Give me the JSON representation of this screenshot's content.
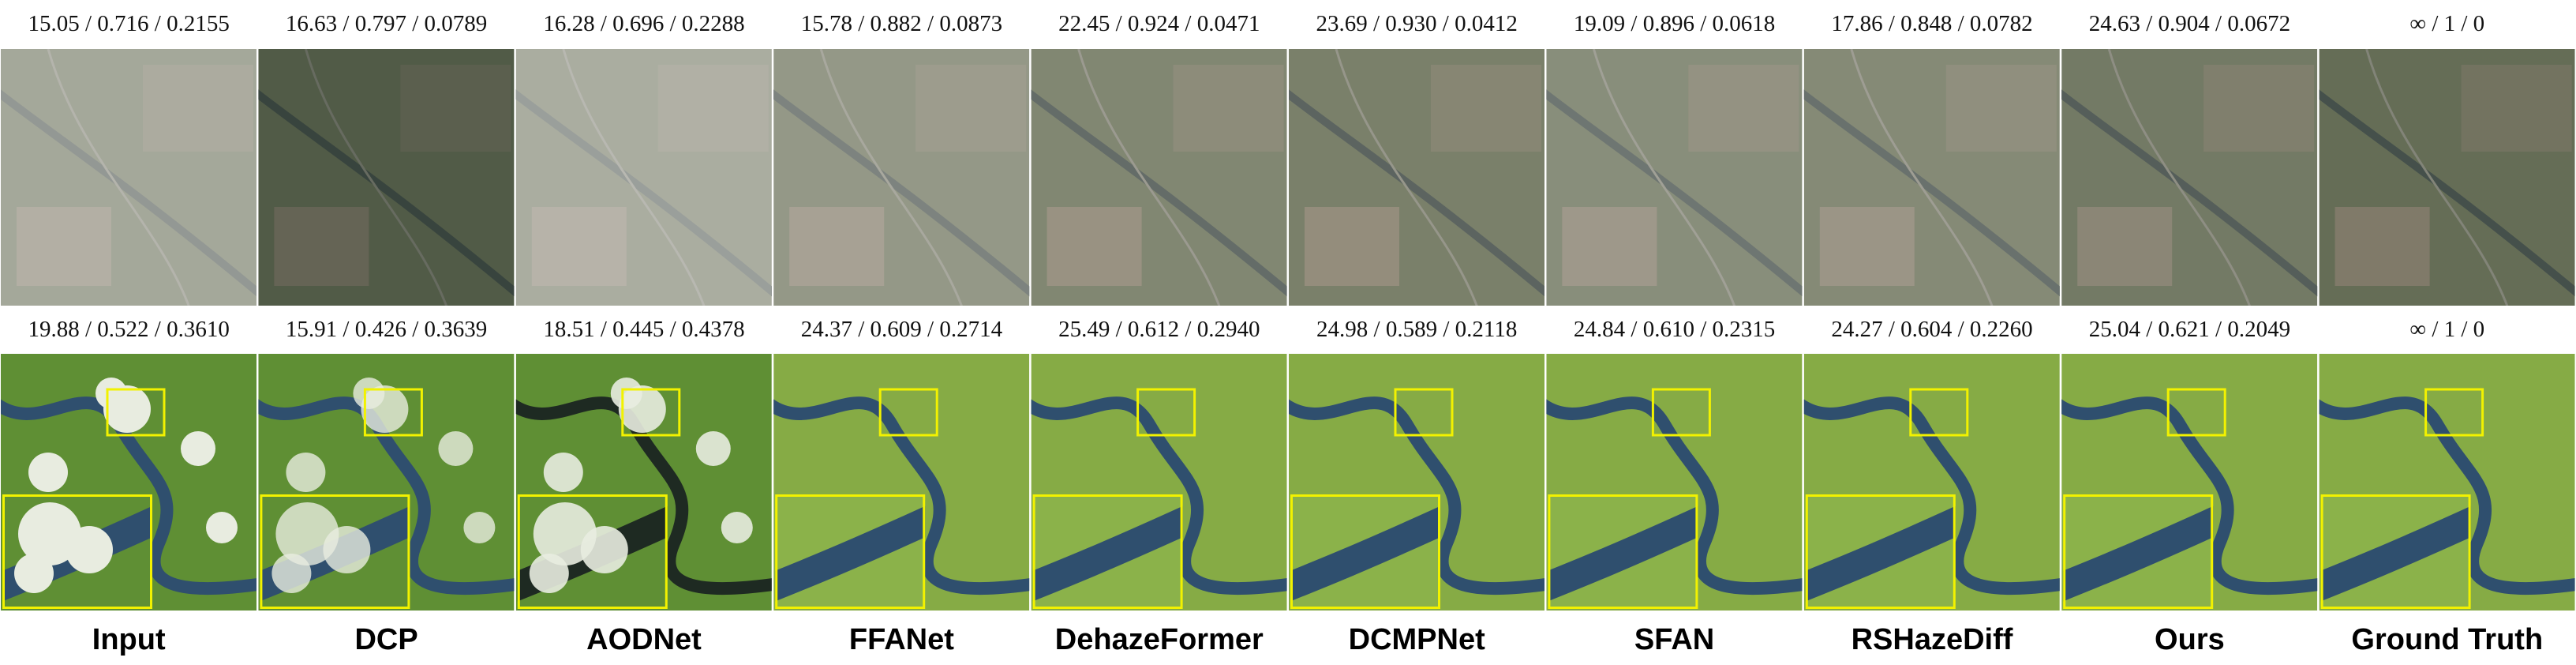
{
  "figure": {
    "methods": [
      "Input",
      "DCP",
      "AODNet",
      "FFANet",
      "DehazeFormer",
      "DCMPNet",
      "SFAN",
      "RSHazeDiff",
      "Ours",
      "Ground Truth"
    ],
    "rows": [
      {
        "metrics": [
          "15.05 / 0.716 / 0.2155",
          "16.63 / 0.797 / 0.0789",
          "16.28 / 0.696 / 0.2288",
          "15.78 / 0.882 / 0.0873",
          "22.45 / 0.924 / 0.0471",
          "23.69 / 0.930 / 0.0412",
          "19.09 / 0.896 / 0.0618",
          "17.86 / 0.848 / 0.0782",
          "24.63 / 0.904 / 0.0672",
          "∞ / 1 / 0"
        ]
      },
      {
        "metrics": [
          "19.88 / 0.522 / 0.3610",
          "15.91 / 0.426 / 0.3639",
          "18.51 / 0.445 / 0.4378",
          "24.37 / 0.609 / 0.2714",
          "25.49 / 0.612 / 0.2940",
          "24.98 / 0.589 / 0.2118",
          "24.84 / 0.610 / 0.2315",
          "24.27 / 0.604 / 0.2260",
          "25.04 / 0.621 / 0.2049",
          "∞ / 1 / 0"
        ]
      }
    ]
  }
}
